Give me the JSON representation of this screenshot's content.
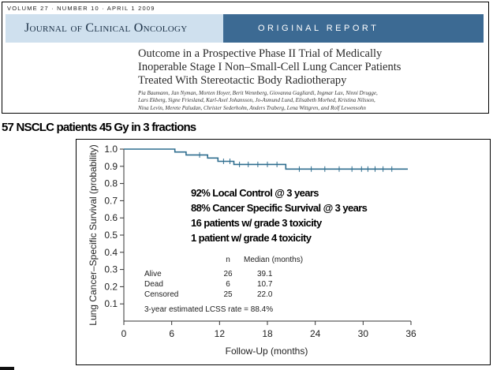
{
  "journal": {
    "volume_line": "VOLUME 27 · NUMBER 10 · APRIL 1 2009",
    "name": "Journal of Clinical Oncology",
    "tag": "ORIGINAL REPORT",
    "title_lines": [
      "Outcome in a Prospective Phase II Trial of Medically",
      "Inoperable Stage I Non–Small-Cell Lung Cancer Patients",
      "Treated With Stereotactic Body Radiotherapy"
    ],
    "author_lines": [
      "Pia Baumann, Jan Nyman, Morten Hoyer, Berit Wennberg, Giovanna Gagliardi, Ingmar Lax, Ninni Drugge,",
      "Lars Ekberg, Signe Friesland, Karl-Axel Johansson, Jo-Asmund Lund, Elisabeth Morhed, Kristina Nilsson,",
      "Nina Levin, Merete Paludan, Christer Sederholm, Anders Traberg, Lena Wittgren, and Rolf Lewensohn"
    ]
  },
  "heading": "57 NSCLC patients  45 Gy in 3 fractions",
  "summary_lines": [
    "92% Local Control @ 3 years",
    "88% Cancer Specific Survival @ 3 years",
    "16 patients w/ grade 3 toxicity",
    "1 patient w/ grade 4 toxicity"
  ],
  "colors": {
    "km_curve": "#2f6e8f",
    "journal_bar": "#cfe0ee",
    "journal_tag": "#3c6a93"
  },
  "chart_data": {
    "type": "line",
    "xlabel": "Follow-Up (months)",
    "ylabel": "Lung Cancer–Specific Survival (probability)",
    "xlim": [
      0,
      36
    ],
    "ylim": [
      0,
      1.0
    ],
    "x_ticks": [
      "0",
      "6",
      "12",
      "18",
      "24",
      "30",
      "36"
    ],
    "y_ticks": [
      "0.1",
      "0.2",
      "0.3",
      "0.4",
      "0.5",
      "0.6",
      "0.7",
      "0.8",
      "0.9",
      "1.0"
    ],
    "grid": false,
    "series": [
      {
        "x": [
          0,
          6.4,
          6.4,
          7.8,
          7.8,
          10.5,
          10.5,
          11.8,
          11.8,
          13.8,
          13.8,
          20.3,
          20.3,
          35.6
        ],
        "y": [
          1.0,
          1.0,
          0.983,
          0.983,
          0.966,
          0.966,
          0.948,
          0.948,
          0.929,
          0.929,
          0.911,
          0.911,
          0.884,
          0.884
        ]
      }
    ],
    "censor_marks": {
      "x": [
        9.5,
        12.5,
        13.3,
        14.5,
        15.6,
        16.8,
        18.0,
        19.2,
        22.0,
        23.5,
        25.2,
        27.0,
        28.6,
        29.8,
        30.6,
        31.5,
        32.5,
        33.6
      ],
      "y": [
        0.966,
        0.929,
        0.929,
        0.911,
        0.911,
        0.911,
        0.911,
        0.911,
        0.884,
        0.884,
        0.884,
        0.884,
        0.884,
        0.884,
        0.884,
        0.884,
        0.884,
        0.884
      ]
    },
    "table": {
      "header": [
        "",
        "n",
        "Median (months)"
      ],
      "rows": [
        [
          "Alive",
          "26",
          "39.1"
        ],
        [
          "Dead",
          "6",
          "10.7"
        ],
        [
          "Censored",
          "25",
          "22.0"
        ]
      ],
      "footnote": "3-year estimated LCSS rate = 88.4%"
    }
  }
}
